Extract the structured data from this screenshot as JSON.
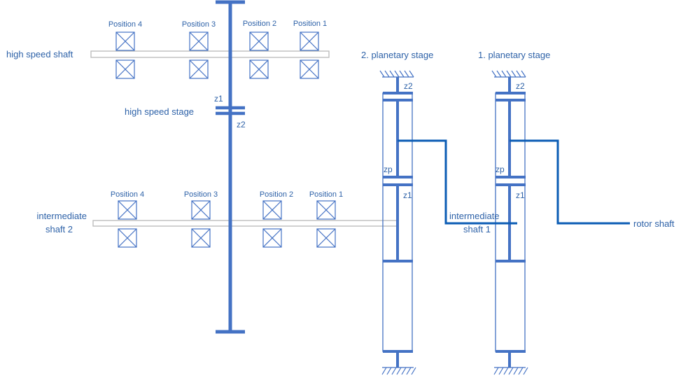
{
  "labels": {
    "high_speed_shaft": "high speed shaft",
    "high_speed_stage": "high speed stage",
    "intermediate_shaft_2_line1": "intermediate",
    "intermediate_shaft_2_line2": "shaft 2",
    "intermediate_shaft_1_line1": "intermediate",
    "intermediate_shaft_1_line2": "shaft 1",
    "planetary_stage_2": "2. planetary stage",
    "planetary_stage_1": "1. planetary stage",
    "rotor_shaft": "rotor shaft"
  },
  "high_speed_positions": [
    "Position 4",
    "Position 3",
    "Position 2",
    "Position 1"
  ],
  "intermediate_positions": [
    "Position 4",
    "Position 3",
    "Position 2",
    "Position 1"
  ],
  "gear_labels": {
    "hs_z1": "z1",
    "hs_z2": "z2",
    "ps2_z2": "z2",
    "ps2_zp": "zp",
    "ps2_z1": "z1",
    "ps1_z2": "z2",
    "ps1_zp": "zp",
    "ps1_z1": "z1"
  },
  "colors": {
    "shaft_blue": "#4472c4",
    "connector_blue": "#0b5cb4",
    "text_blue": "#2e62a8",
    "light_gray": "#b8b8b8"
  }
}
